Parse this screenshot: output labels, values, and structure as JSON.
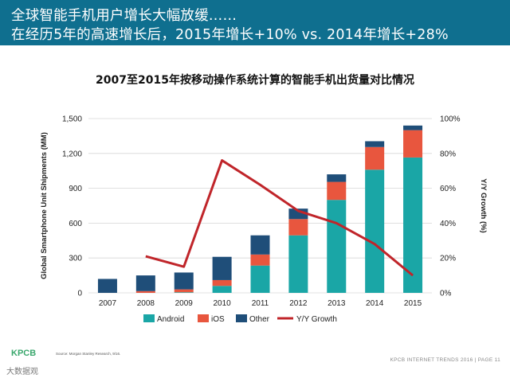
{
  "header": {
    "line1": "全球智能手机用户增长大幅放缓……",
    "line2": "在经历5年的高速增长后，2015年增长+10% vs. 2014年增长+28%"
  },
  "footer": {
    "logo": "KPCB",
    "source": "Source: Morgan Stanley Research, 9/16.",
    "page_label": "KPCB INTERNET TRENDS 2016  |  PAGE 11",
    "watermark": "大数据观"
  },
  "colors": {
    "header_bg": "#0f6f8f",
    "android": "#1aa6a6",
    "ios": "#e8563e",
    "other": "#1f4e79",
    "growth": "#c0252a"
  },
  "chart_data": {
    "type": "bar",
    "stacked": true,
    "title": "2007至2015年按移动操作系统计算的智能手机出货量对比情况",
    "xlabel": "",
    "ylabel": "Global Smartphone Unit Shipments (MM)",
    "y2label": "Y/Y Growth (%)",
    "categories": [
      "2007",
      "2008",
      "2009",
      "2010",
      "2011",
      "2012",
      "2013",
      "2014",
      "2015"
    ],
    "ylim": [
      0,
      1500
    ],
    "yticks": [
      "0",
      "300",
      "600",
      "900",
      "1,200",
      "1,500"
    ],
    "ytick_values": [
      0,
      300,
      600,
      900,
      1200,
      1500
    ],
    "y2lim": [
      0,
      100
    ],
    "y2ticks": [
      "0%",
      "20%",
      "40%",
      "60%",
      "80%",
      "100%"
    ],
    "y2tick_values": [
      0,
      20,
      40,
      60,
      80,
      100
    ],
    "grid": true,
    "legend": "bottom",
    "series": [
      {
        "name": "Android",
        "values": [
          0,
          0,
          5,
          60,
          235,
          495,
          800,
          1060,
          1165
        ]
      },
      {
        "name": "iOS",
        "values": [
          0,
          15,
          25,
          50,
          95,
          140,
          155,
          195,
          235
        ]
      },
      {
        "name": "Other",
        "values": [
          120,
          135,
          145,
          200,
          165,
          90,
          65,
          50,
          40
        ]
      }
    ],
    "line_series": {
      "name": "Y/Y Growth",
      "values": [
        null,
        21,
        15,
        76,
        62,
        47,
        40,
        28,
        10
      ]
    }
  }
}
